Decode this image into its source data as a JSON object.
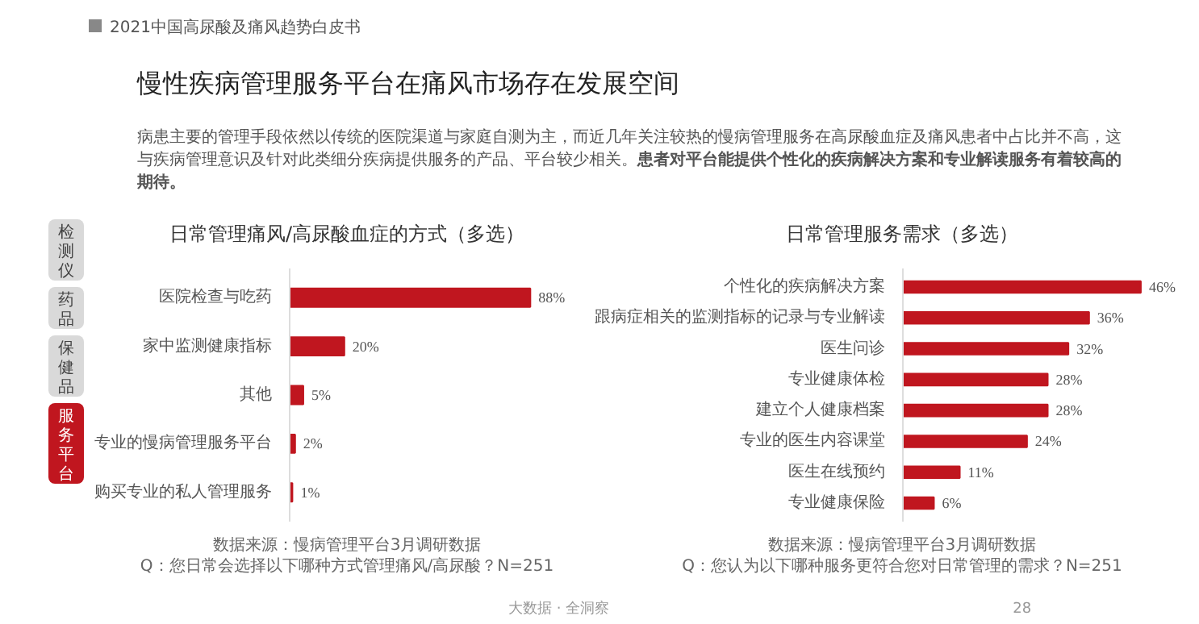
{
  "chart_data": [
    {
      "type": "other",
      "title": "慢性疾病管理服务平台在痛风市场存在发展空间",
      "annotations": [
        "2021中国高尿酸及痛风趋势白皮书",
        "病患主要的管理手段依然以传统的医院渠道与家庭自测为主，而近几年关注较热的慢病管理服务在高尿酸血症及痛风患者中占比并不高，这与疾病管理意识及针对此类细分疾病提供服务的产品、平台较少相关。",
        "患者对平台能提供个性化的疾病解决方案和专业解读服务有着较高的期待。",
        "大数据 · 全洞察",
        "28"
      ],
      "categories": [
        "检测仪",
        "药品",
        "保健品",
        "服务平台"
      ],
      "colors": [
        "#d9d9d9",
        "#d9d9d9",
        "#d9d9d9",
        "#c0161f"
      ]
    },
    {
      "type": "bar",
      "orientation": "horizontal",
      "title": "日常管理痛风/高尿酸血症的方式（多选）",
      "categories": [
        "医院检查与吃药",
        "家中监测健康指标",
        "其他",
        "专业的慢病管理服务平台",
        "购买专业的私人管理服务"
      ],
      "values": [
        88,
        20,
        5,
        2,
        1
      ],
      "color": "#c0161f",
      "value_labels": [
        "88%",
        "20%",
        "5%",
        "2%",
        "1%"
      ],
      "annotations": [
        "数据来源：慢病管理平台3月调研数据",
        "Q：您日常会选择以下哪种方式管理痛风/高尿酸？N=251"
      ]
    },
    {
      "type": "bar",
      "orientation": "horizontal",
      "title": "日常管理服务需求（多选）",
      "categories": [
        "个性化的疾病解决方案",
        "跟病症相关的监测指标的记录与专业解读",
        "医生问诊",
        "专业健康体检",
        "建立个人健康档案",
        "专业的医生内容课堂",
        "医生在线预约",
        "专业健康保险"
      ],
      "values": [
        46,
        36,
        32,
        28,
        28,
        24,
        11,
        6
      ],
      "color": "#c0161f",
      "value_labels": [
        "46%",
        "36%",
        "32%",
        "28%",
        "28%",
        "24%",
        "11%",
        "6%"
      ],
      "annotations": [
        "数据来源：慢病管理平台3月调研数据",
        "Q：您认为以下哪种服务更符合您对日常管理的需求？N=251"
      ]
    }
  ]
}
